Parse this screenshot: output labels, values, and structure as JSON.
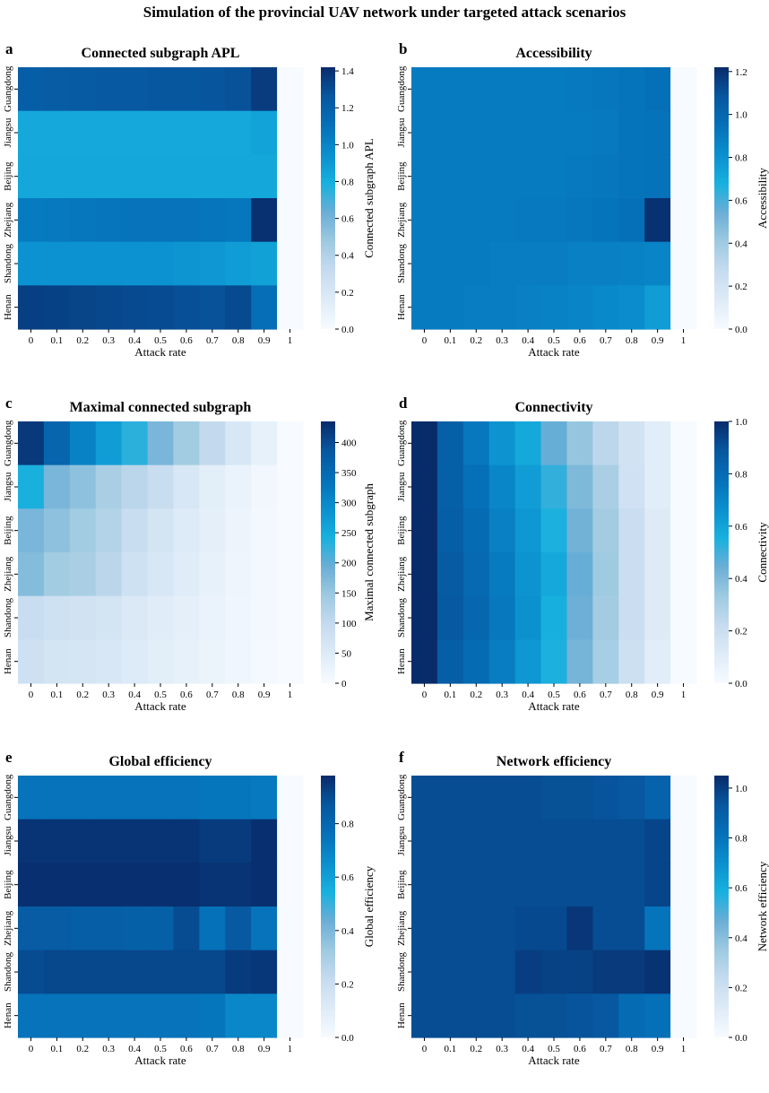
{
  "figure_title": "Simulation of the provincial UAV network under targeted attack scenarios",
  "colormap": [
    "#f7fbff",
    "#deebf7",
    "#c6dbef",
    "#9ecae1",
    "#6baed6",
    "#17b0de",
    "#0b8fce",
    "#0570b8",
    "#07579f",
    "#082b6a"
  ],
  "chart_data": [
    {
      "type": "heatmap",
      "panel": "a",
      "title": "Connected subgraph APL",
      "xlabel": "Attack rate",
      "colorbar_label": "Connected subgraph APL",
      "x_categories": [
        "0",
        "0.1",
        "0.2",
        "0.3",
        "0.4",
        "0.5",
        "0.6",
        "0.7",
        "0.8",
        "0.9",
        "1"
      ],
      "y_categories": [
        "Guangdong",
        "Jiangsu",
        "Beijing",
        "Zhejiang",
        "Shandong",
        "Henan"
      ],
      "vmin": 0,
      "vmax": 1.42,
      "colorbar_ticks": [
        "0.0",
        "0.2",
        "0.4",
        "0.6",
        "0.8",
        "1.0",
        "1.2",
        "1.4"
      ],
      "values": [
        [
          1.22,
          1.23,
          1.24,
          1.25,
          1.25,
          1.26,
          1.26,
          1.27,
          1.28,
          1.36,
          0
        ],
        [
          0.82,
          0.82,
          0.82,
          0.82,
          0.82,
          0.82,
          0.82,
          0.82,
          0.82,
          0.85,
          0
        ],
        [
          0.83,
          0.83,
          0.83,
          0.83,
          0.83,
          0.83,
          0.83,
          0.83,
          0.83,
          0.83,
          0
        ],
        [
          1.05,
          1.06,
          1.07,
          1.08,
          1.09,
          1.09,
          1.09,
          1.08,
          1.07,
          1.4,
          0
        ],
        [
          0.93,
          0.93,
          0.93,
          0.93,
          0.93,
          0.93,
          0.92,
          0.91,
          0.88,
          0.86,
          0
        ],
        [
          1.35,
          1.34,
          1.33,
          1.32,
          1.31,
          1.3,
          1.29,
          1.28,
          1.31,
          1.12,
          0
        ]
      ]
    },
    {
      "type": "heatmap",
      "panel": "b",
      "title": "Accessibility",
      "xlabel": "Attack rate",
      "colorbar_label": "Accessibility",
      "x_categories": [
        "0",
        "0.1",
        "0.2",
        "0.3",
        "0.4",
        "0.5",
        "0.6",
        "0.7",
        "0.8",
        "0.9",
        "1"
      ],
      "y_categories": [
        "Guangdong",
        "Jiangsu",
        "Beijing",
        "Zhejiang",
        "Shandong",
        "Henan"
      ],
      "vmin": 0,
      "vmax": 1.22,
      "colorbar_ticks": [
        "0.0",
        "0.2",
        "0.4",
        "0.6",
        "0.8",
        "1.0",
        "1.2"
      ],
      "values": [
        [
          0.9,
          0.9,
          0.9,
          0.9,
          0.9,
          0.9,
          0.91,
          0.92,
          0.93,
          0.95,
          0
        ],
        [
          0.9,
          0.9,
          0.9,
          0.9,
          0.9,
          0.9,
          0.9,
          0.91,
          0.93,
          0.94,
          0
        ],
        [
          0.9,
          0.9,
          0.9,
          0.9,
          0.9,
          0.9,
          0.91,
          0.92,
          0.93,
          0.94,
          0
        ],
        [
          0.9,
          0.9,
          0.9,
          0.9,
          0.91,
          0.91,
          0.92,
          0.93,
          0.95,
          1.2,
          0
        ],
        [
          0.9,
          0.9,
          0.9,
          0.89,
          0.89,
          0.89,
          0.88,
          0.88,
          0.87,
          0.86,
          0
        ],
        [
          0.9,
          0.9,
          0.89,
          0.89,
          0.88,
          0.87,
          0.86,
          0.84,
          0.82,
          0.76,
          0
        ]
      ]
    },
    {
      "type": "heatmap",
      "panel": "c",
      "title": "Maximal connected subgraph",
      "xlabel": "Attack rate",
      "colorbar_label": "Maximal connected subgraph",
      "x_categories": [
        "0",
        "0.1",
        "0.2",
        "0.3",
        "0.4",
        "0.5",
        "0.6",
        "0.7",
        "0.8",
        "0.9",
        "1"
      ],
      "y_categories": [
        "Guangdong",
        "Jiangsu",
        "Beijing",
        "Zhejiang",
        "Shandong",
        "Henan"
      ],
      "vmin": 0,
      "vmax": 435,
      "colorbar_ticks": [
        "0",
        "50",
        "100",
        "150",
        "200",
        "250",
        "300",
        "350",
        "400"
      ],
      "values": [
        [
          420,
          360,
          310,
          270,
          230,
          180,
          140,
          100,
          60,
          30,
          0
        ],
        [
          240,
          180,
          160,
          130,
          110,
          90,
          60,
          40,
          25,
          12,
          0
        ],
        [
          180,
          160,
          140,
          120,
          90,
          70,
          50,
          35,
          20,
          10,
          0
        ],
        [
          170,
          140,
          130,
          110,
          80,
          60,
          45,
          30,
          18,
          8,
          0
        ],
        [
          90,
          80,
          75,
          70,
          55,
          45,
          35,
          25,
          15,
          8,
          0
        ],
        [
          80,
          70,
          65,
          60,
          50,
          40,
          30,
          22,
          14,
          7,
          0
        ]
      ]
    },
    {
      "type": "heatmap",
      "panel": "d",
      "title": "Connectivity",
      "xlabel": "Attack rate",
      "colorbar_label": "Connectivity",
      "x_categories": [
        "0",
        "0.1",
        "0.2",
        "0.3",
        "0.4",
        "0.5",
        "0.6",
        "0.7",
        "0.8",
        "0.9",
        "1"
      ],
      "y_categories": [
        "Guangdong",
        "Jiangsu",
        "Beijing",
        "Zhejiang",
        "Shandong",
        "Henan"
      ],
      "vmin": 0,
      "vmax": 1.0,
      "colorbar_ticks": [
        "0.0",
        "0.2",
        "0.4",
        "0.6",
        "0.8",
        "1.0"
      ],
      "values": [
        [
          1.0,
          0.85,
          0.75,
          0.65,
          0.58,
          0.45,
          0.35,
          0.25,
          0.17,
          0.1,
          0
        ],
        [
          1.0,
          0.85,
          0.78,
          0.7,
          0.62,
          0.52,
          0.4,
          0.3,
          0.18,
          0.1,
          0
        ],
        [
          1.0,
          0.86,
          0.8,
          0.72,
          0.64,
          0.55,
          0.43,
          0.32,
          0.2,
          0.11,
          0
        ],
        [
          1.0,
          0.87,
          0.81,
          0.74,
          0.65,
          0.58,
          0.45,
          0.33,
          0.2,
          0.11,
          0
        ],
        [
          1.0,
          0.88,
          0.82,
          0.75,
          0.66,
          0.56,
          0.44,
          0.32,
          0.2,
          0.11,
          0
        ],
        [
          1.0,
          0.86,
          0.8,
          0.73,
          0.64,
          0.55,
          0.42,
          0.31,
          0.19,
          0.1,
          0
        ]
      ]
    },
    {
      "type": "heatmap",
      "panel": "e",
      "title": "Global efficiency",
      "xlabel": "Attack rate",
      "colorbar_label": "Global efficiency",
      "x_categories": [
        "0",
        "0.1",
        "0.2",
        "0.3",
        "0.4",
        "0.5",
        "0.6",
        "0.7",
        "0.8",
        "0.9",
        "1"
      ],
      "y_categories": [
        "Guangdong",
        "Jiangsu",
        "Beijing",
        "Zhejiang",
        "Shandong",
        "Henan"
      ],
      "vmin": 0,
      "vmax": 0.98,
      "colorbar_ticks": [
        "0.0",
        "0.2",
        "0.4",
        "0.6",
        "0.8"
      ],
      "values": [
        [
          0.75,
          0.75,
          0.75,
          0.75,
          0.75,
          0.75,
          0.75,
          0.74,
          0.74,
          0.73,
          0
        ],
        [
          0.96,
          0.96,
          0.96,
          0.96,
          0.96,
          0.96,
          0.96,
          0.94,
          0.94,
          0.97,
          0
        ],
        [
          0.97,
          0.97,
          0.97,
          0.97,
          0.97,
          0.97,
          0.97,
          0.96,
          0.96,
          0.97,
          0
        ],
        [
          0.85,
          0.85,
          0.84,
          0.84,
          0.83,
          0.83,
          0.9,
          0.76,
          0.86,
          0.75,
          0
        ],
        [
          0.9,
          0.91,
          0.91,
          0.91,
          0.91,
          0.91,
          0.91,
          0.91,
          0.94,
          0.95,
          0
        ],
        [
          0.75,
          0.75,
          0.75,
          0.75,
          0.75,
          0.75,
          0.75,
          0.74,
          0.68,
          0.68,
          0
        ]
      ]
    },
    {
      "type": "heatmap",
      "panel": "f",
      "title": "Network efficiency",
      "xlabel": "Attack rate",
      "colorbar_label": "Network efficiency",
      "x_categories": [
        "0",
        "0.1",
        "0.2",
        "0.3",
        "0.4",
        "0.5",
        "0.6",
        "0.7",
        "0.8",
        "0.9",
        "1"
      ],
      "y_categories": [
        "Guangdong",
        "Jiangsu",
        "Beijing",
        "Zhejiang",
        "Shandong",
        "Henan"
      ],
      "vmin": 0,
      "vmax": 1.05,
      "colorbar_ticks": [
        "0.0",
        "0.2",
        "0.4",
        "0.6",
        "0.8",
        "1.0"
      ],
      "values": [
        [
          0.96,
          0.96,
          0.96,
          0.96,
          0.96,
          0.95,
          0.95,
          0.94,
          0.93,
          0.88,
          0
        ],
        [
          0.96,
          0.96,
          0.96,
          0.96,
          0.96,
          0.96,
          0.96,
          0.96,
          0.96,
          0.98,
          0
        ],
        [
          0.96,
          0.96,
          0.96,
          0.96,
          0.96,
          0.96,
          0.96,
          0.96,
          0.96,
          0.98,
          0
        ],
        [
          0.96,
          0.96,
          0.96,
          0.96,
          0.97,
          0.97,
          1.02,
          0.96,
          0.96,
          0.8,
          0
        ],
        [
          0.96,
          0.96,
          0.96,
          0.96,
          1.0,
          0.99,
          0.99,
          1.01,
          1.01,
          1.03,
          0
        ],
        [
          0.96,
          0.96,
          0.96,
          0.96,
          0.95,
          0.95,
          0.94,
          0.93,
          0.84,
          0.82,
          0
        ]
      ]
    }
  ]
}
